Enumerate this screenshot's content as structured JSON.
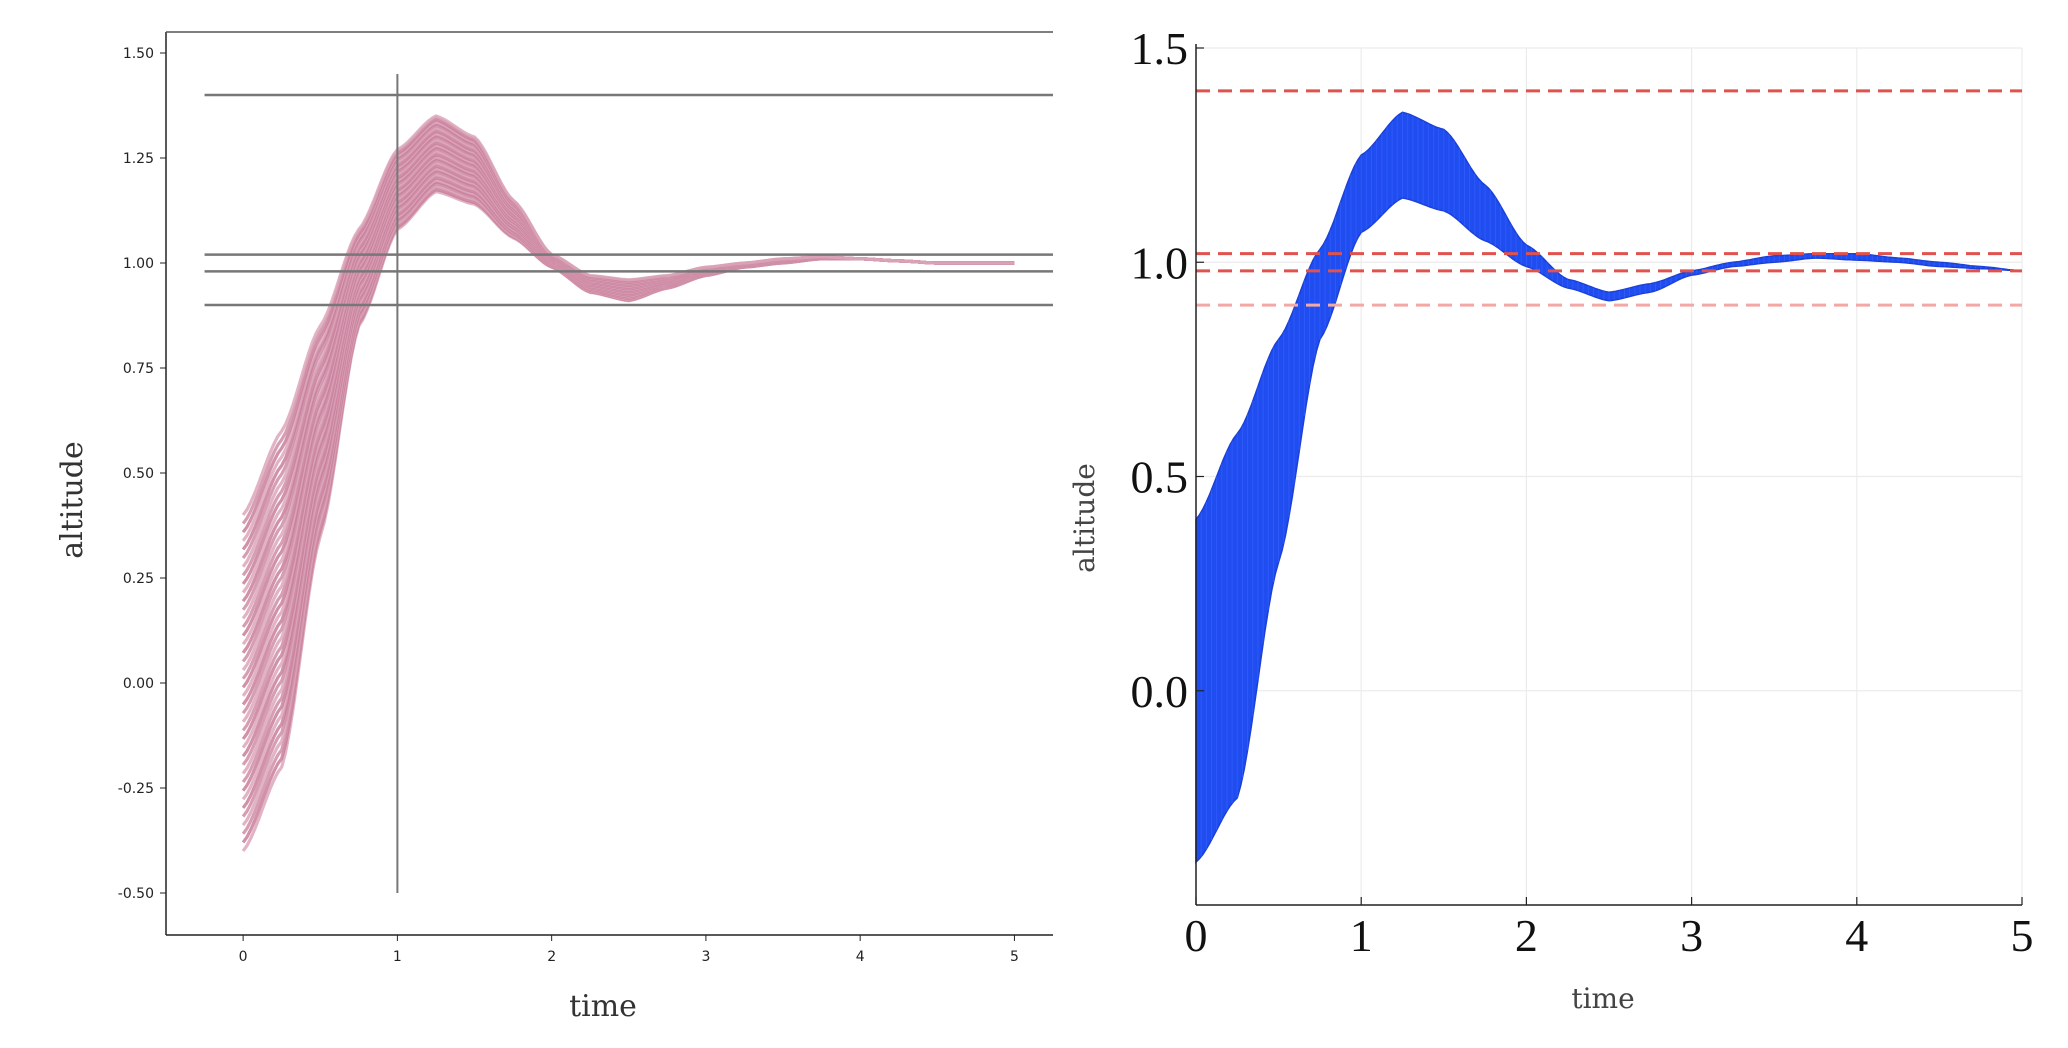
{
  "chart_data": [
    {
      "type": "line",
      "title": "",
      "xlabel": "time",
      "ylabel": "altitude",
      "xlim": [
        -0.5,
        5.25
      ],
      "ylim": [
        -0.6,
        1.55
      ],
      "x_ticks": [
        "0",
        "1",
        "2",
        "3",
        "4",
        "5"
      ],
      "y_ticks": [
        "-0.50",
        "-0.25",
        "0.00",
        "0.25",
        "0.50",
        "0.75",
        "1.00",
        "1.25",
        "1.50"
      ],
      "x_tick_values": [
        0,
        1,
        2,
        3,
        4,
        5
      ],
      "y_tick_values": [
        -0.5,
        -0.25,
        0,
        0.25,
        0.5,
        0.75,
        1.0,
        1.25,
        1.5
      ],
      "grid": false,
      "series_style": "family of trajectories (tube)",
      "series_color": "#c06f8e",
      "series_color_light": "#f2d3de",
      "trajectory_family": {
        "initial_altitude_range": [
          -0.4,
          0.4
        ],
        "x": [
          0,
          0.25,
          0.5,
          0.75,
          1.0,
          1.25,
          1.5,
          1.75,
          2.0,
          2.25,
          2.5,
          2.75,
          3.0,
          3.25,
          3.5,
          3.75,
          4.0,
          4.25,
          4.5,
          4.75,
          5.0
        ],
        "upper": [
          0.4,
          0.6,
          0.85,
          1.08,
          1.27,
          1.35,
          1.3,
          1.15,
          1.02,
          0.97,
          0.96,
          0.97,
          0.99,
          1.0,
          1.01,
          1.015,
          1.01,
          1.005,
          1.0,
          1.0,
          1.0
        ],
        "lower": [
          -0.4,
          -0.2,
          0.35,
          0.85,
          1.08,
          1.17,
          1.14,
          1.06,
          0.99,
          0.93,
          0.91,
          0.94,
          0.97,
          0.99,
          1.0,
          1.01,
          1.01,
          1.005,
          1.0,
          1.0,
          1.0
        ]
      },
      "reference_lines": {
        "horizontal": [
          1.4,
          1.02,
          0.98,
          0.9
        ],
        "vertical": [
          1.0
        ],
        "vertical_span": [
          -0.5,
          1.45
        ],
        "color": "#777777"
      }
    },
    {
      "type": "area",
      "title": "",
      "xlabel": "time",
      "ylabel": "altitude",
      "xlim": [
        0,
        5
      ],
      "ylim": [
        -0.5,
        1.5
      ],
      "x_ticks": [
        "0",
        "1",
        "2",
        "3",
        "4",
        "5"
      ],
      "y_ticks": [
        "0.0",
        "0.5",
        "1.0",
        "1.5"
      ],
      "x_tick_values": [
        0,
        1,
        2,
        3,
        4,
        5
      ],
      "y_tick_values": [
        0.0,
        0.5,
        1.0,
        1.5
      ],
      "grid": true,
      "series_style": "reachable-set band",
      "series_color": "#1f4df0",
      "band": {
        "x": [
          0,
          0.25,
          0.5,
          0.75,
          1.0,
          1.25,
          1.5,
          1.75,
          2.0,
          2.25,
          2.5,
          2.75,
          3.0,
          3.25,
          3.5,
          3.75,
          4.0,
          4.25,
          4.5,
          4.75,
          5.0
        ],
        "upper": [
          0.4,
          0.6,
          0.82,
          1.03,
          1.25,
          1.35,
          1.31,
          1.18,
          1.04,
          0.96,
          0.93,
          0.95,
          0.98,
          1.0,
          1.015,
          1.02,
          1.02,
          1.01,
          1.0,
          0.99,
          0.98
        ],
        "lower": [
          -0.4,
          -0.25,
          0.3,
          0.82,
          1.07,
          1.15,
          1.12,
          1.05,
          0.99,
          0.94,
          0.91,
          0.93,
          0.97,
          0.99,
          1.0,
          1.01,
          1.005,
          1.0,
          0.99,
          0.985,
          0.98
        ]
      },
      "reference_lines": {
        "horizontal": [
          1.4,
          1.02,
          0.98,
          0.9
        ],
        "style": "dashed",
        "colors": [
          "#e0524d",
          "#e0524d",
          "#e0524d",
          "#f2a9a6"
        ]
      }
    }
  ]
}
